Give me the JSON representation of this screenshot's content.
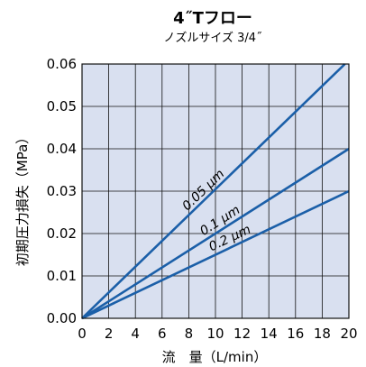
{
  "chart_data": {
    "type": "line",
    "title": "4˝Tフロー",
    "subtitle": "ノズルサイズ 3/4˝",
    "xlabel": "流　量（L/min）",
    "ylabel": "初期圧力損失（MPa）",
    "xlim": [
      0,
      20
    ],
    "ylim": [
      0,
      0.06
    ],
    "xticks": [
      0,
      2,
      4,
      6,
      8,
      10,
      12,
      14,
      16,
      18,
      20
    ],
    "yticks": [
      "0.00",
      "0.01",
      "0.02",
      "0.03",
      "0.04",
      "0.05",
      "0.06"
    ],
    "grid": true,
    "background_color": "#d9e0f0",
    "line_color": "#1b5fa8",
    "series": [
      {
        "name": "0.05 μm",
        "x": [
          0,
          19.7
        ],
        "y": [
          0,
          0.06
        ]
      },
      {
        "name": "0.1 μm",
        "x": [
          0,
          20
        ],
        "y": [
          0,
          0.04
        ]
      },
      {
        "name": "0.2 μm",
        "x": [
          0,
          20
        ],
        "y": [
          0,
          0.03
        ]
      }
    ]
  }
}
